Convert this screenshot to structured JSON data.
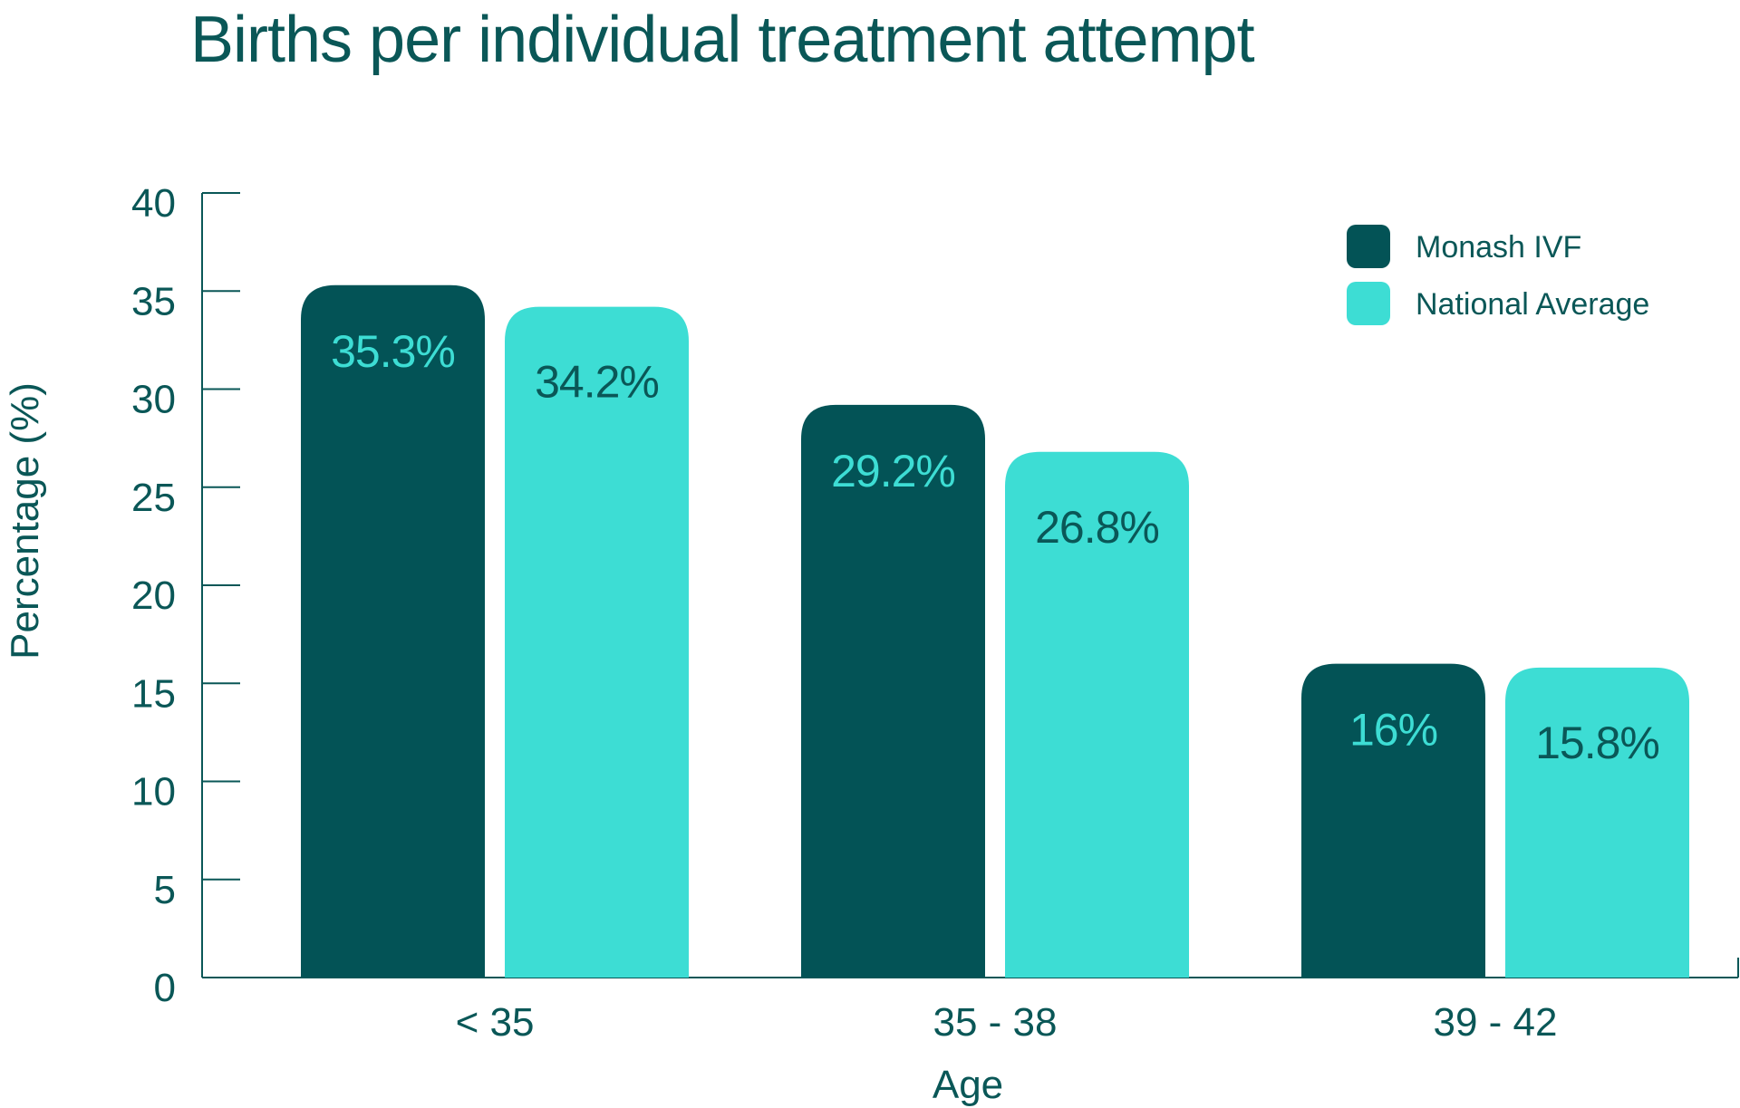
{
  "chart_data": {
    "type": "bar",
    "title": "Births per individual treatment attempt",
    "xlabel": "Age",
    "ylabel": "Percentage (%)",
    "ylim": [
      0,
      40
    ],
    "yticks": [
      0,
      5,
      10,
      15,
      20,
      25,
      30,
      35,
      40
    ],
    "categories": [
      "< 35",
      "35 - 38",
      "39 - 42"
    ],
    "series": [
      {
        "name": "Monash IVF",
        "values": [
          35.3,
          29.2,
          16
        ],
        "labels": [
          "35.3%",
          "29.2%",
          "16%"
        ],
        "color": "#035356",
        "label_color": "#3dddd4"
      },
      {
        "name": "National Average",
        "values": [
          34.2,
          26.8,
          15.8
        ],
        "labels": [
          "34.2%",
          "26.8%",
          "15.8%"
        ],
        "color": "#3dddd4",
        "label_color": "#0a5757"
      }
    ],
    "legend_position": "top-right",
    "grid": false
  }
}
